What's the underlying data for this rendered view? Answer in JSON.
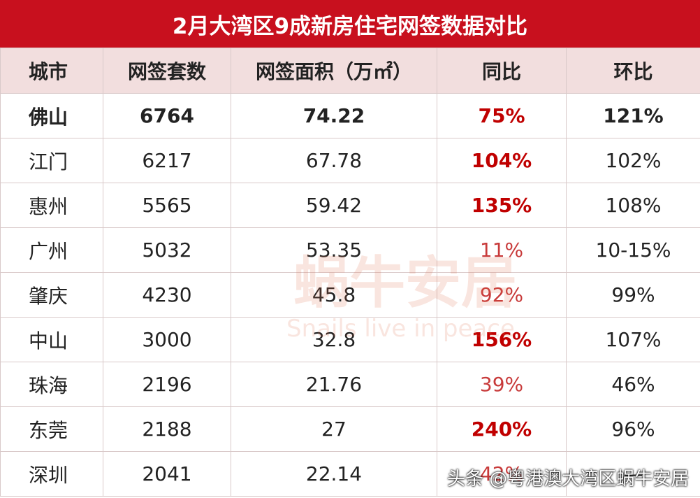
{
  "title": "2月大湾区9成新房住宅网签数据对比",
  "table": {
    "header": [
      "城市",
      "网签套数",
      "网签面积（万㎡）",
      "同比",
      "环比"
    ],
    "rows": [
      [
        "佛山",
        "6764",
        "74.22",
        "75%",
        "121%"
      ],
      [
        "江门",
        "6217",
        "67.78",
        "104%",
        "102%"
      ],
      [
        "惠州",
        "5565",
        "59.42",
        "135%",
        "108%"
      ],
      [
        "广州",
        "5032",
        "53.35",
        "11%",
        "10-15%"
      ],
      [
        "肇庆",
        "4230",
        "45.8",
        "92%",
        "99%"
      ],
      [
        "中山",
        "3000",
        "32.8",
        "156%",
        "107%"
      ],
      [
        "珠海",
        "2196",
        "21.76",
        "39%",
        "46%"
      ],
      [
        "东莞",
        "2188",
        "27",
        "240%",
        "96%"
      ],
      [
        "深圳",
        "2041",
        "22.14",
        "42%",
        "—"
      ]
    ]
  },
  "watermark": {
    "brand": "蜗牛安居",
    "slogan": "Snails live in peace",
    "source": "头条 @粤港澳大湾区蜗牛安居"
  }
}
